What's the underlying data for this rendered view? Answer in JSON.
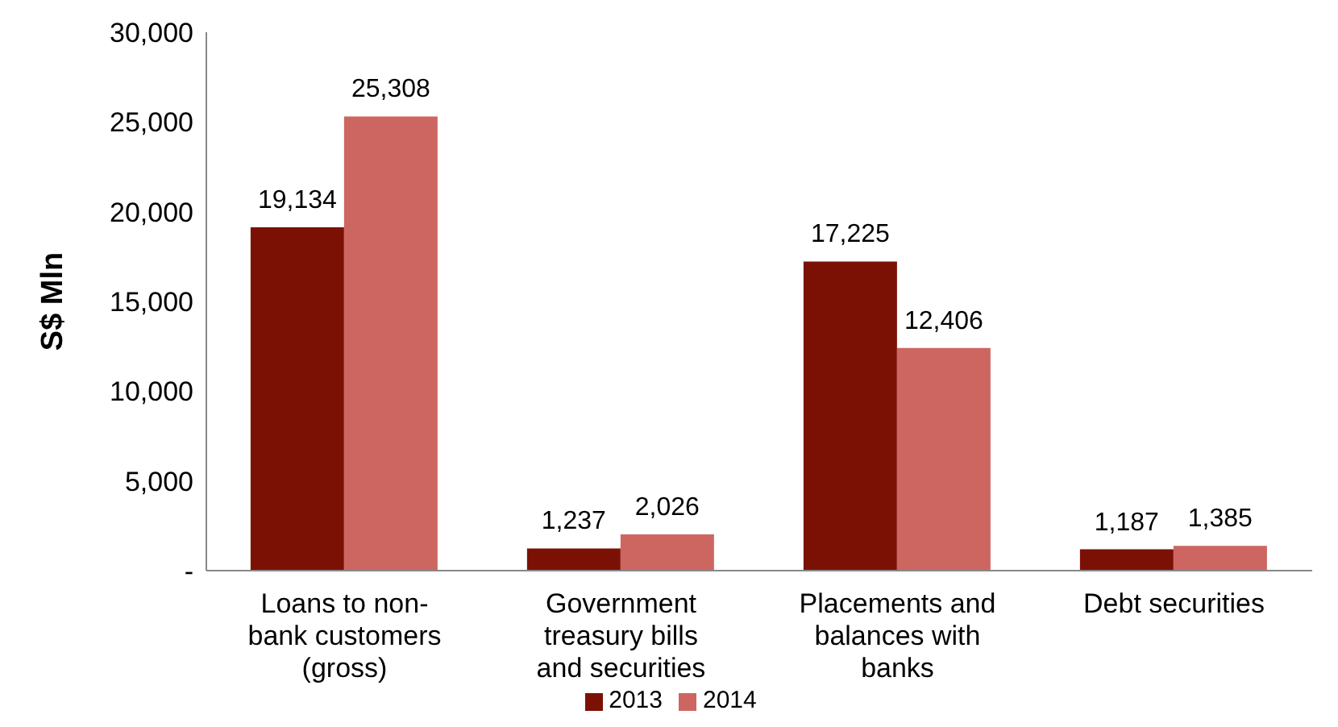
{
  "chart_data": {
    "type": "bar",
    "ylabel": "S$ Mln",
    "categories": [
      "Loans to non-bank customers (gross)",
      "Government treasury bills and securities",
      "Placements and balances with banks",
      "Debt securities"
    ],
    "series": [
      {
        "name": "2013",
        "color": "#7b1105",
        "values": [
          19134,
          1237,
          17225,
          1187
        ],
        "value_labels": [
          "19,134",
          "1,237",
          "17,225",
          "1,187"
        ]
      },
      {
        "name": "2014",
        "color": "#cd6661",
        "values": [
          25308,
          2026,
          12406,
          1385
        ],
        "value_labels": [
          "25,308",
          "2,026",
          "12,406",
          "1,385"
        ]
      }
    ],
    "ylim": [
      0,
      30000
    ],
    "yticks": [
      {
        "value": 0,
        "label": "-"
      },
      {
        "value": 5000,
        "label": "5,000"
      },
      {
        "value": 10000,
        "label": "10,000"
      },
      {
        "value": 15000,
        "label": "15,000"
      },
      {
        "value": 20000,
        "label": "20,000"
      },
      {
        "value": 25000,
        "label": "25,000"
      },
      {
        "value": 30000,
        "label": "30,000"
      }
    ],
    "grid": false,
    "legend": "bottom"
  }
}
